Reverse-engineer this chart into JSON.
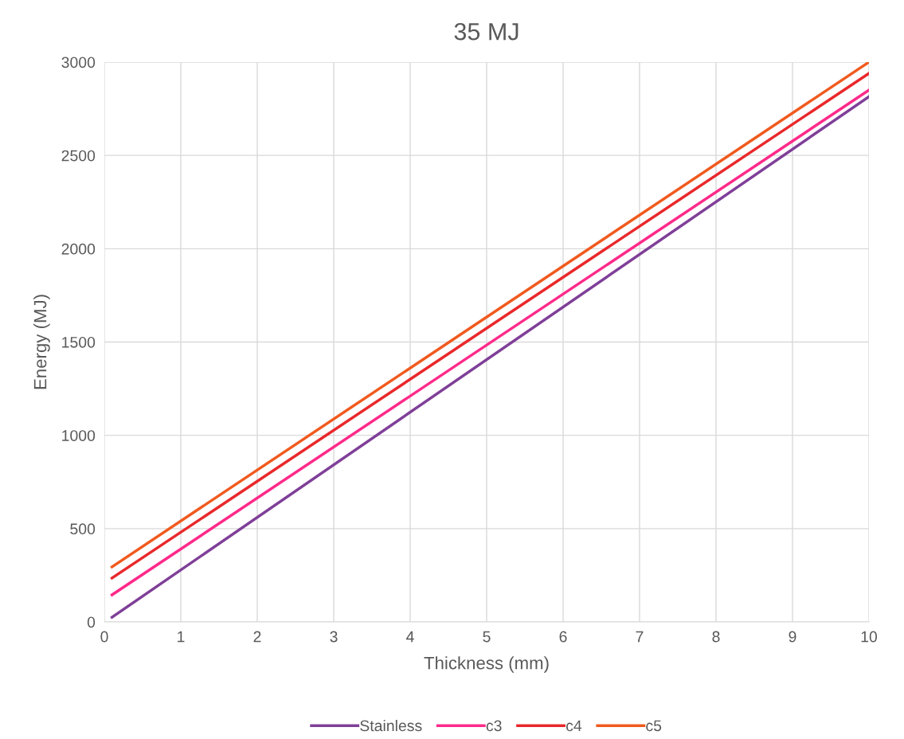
{
  "chart_data": {
    "type": "line",
    "title": "35 MJ",
    "xlabel": "Thickness (mm)",
    "ylabel": "Energy (MJ)",
    "x": [
      0.1,
      10
    ],
    "series": [
      {
        "name": "Stainless",
        "color": "#7f3f98",
        "values": [
          25,
          2815
        ]
      },
      {
        "name": "c3",
        "color": "#ff2a8a",
        "values": [
          145,
          2850
        ]
      },
      {
        "name": "c4",
        "color": "#e8282b",
        "values": [
          235,
          2940
        ]
      },
      {
        "name": "c5",
        "color": "#f05a1e",
        "values": [
          295,
          3000
        ]
      }
    ],
    "xlim": [
      0,
      10
    ],
    "xticks": [
      0,
      1,
      2,
      3,
      4,
      5,
      6,
      7,
      8,
      9,
      10
    ],
    "ylim": [
      0,
      3000
    ],
    "yticks": [
      0,
      500,
      1000,
      1500,
      2000,
      2500,
      3000
    ],
    "grid": true,
    "legend": "bottom",
    "marker": "none",
    "line_style": "solid"
  }
}
